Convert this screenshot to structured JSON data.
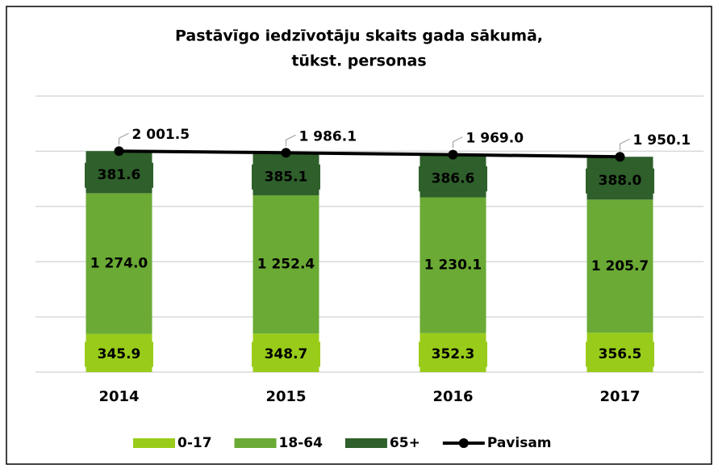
{
  "chart_data": {
    "type": "bar",
    "stacked": true,
    "title": "Pastāvīgo iedzīvotāju skaits gada sākumā,",
    "subtitle": "tūkst. personas",
    "categories": [
      "2014",
      "2015",
      "2016",
      "2017"
    ],
    "series": [
      {
        "name": "0-17",
        "color": "#99cc1a",
        "values": [
          345.9,
          348.7,
          352.3,
          356.5
        ],
        "value_labels": [
          "345.9",
          "348.7",
          "352.3",
          "356.5"
        ]
      },
      {
        "name": "18-64",
        "color": "#6aaa35",
        "values": [
          1274.0,
          1252.4,
          1230.1,
          1205.7
        ],
        "value_labels": [
          "1 274.0",
          "1 252.4",
          "1 230.1",
          "1 205.7"
        ]
      },
      {
        "name": "65+",
        "color": "#2f5f2b",
        "values": [
          381.6,
          385.1,
          386.6,
          388.0
        ],
        "value_labels": [
          "381.6",
          "385.1",
          "386.6",
          "388.0"
        ]
      },
      {
        "name": "Pavisam",
        "type": "line",
        "color": "#000000",
        "values": [
          2001.5,
          1986.1,
          1969.0,
          1950.1
        ],
        "value_labels": [
          "2 001.5",
          "1 986.1",
          "1 969.0",
          "1 950.1"
        ]
      }
    ],
    "ylim": [
      0,
      2500
    ],
    "yticks": [
      0,
      500,
      1000,
      1500,
      2000,
      2500
    ],
    "grid": true,
    "legend": "bottom"
  }
}
